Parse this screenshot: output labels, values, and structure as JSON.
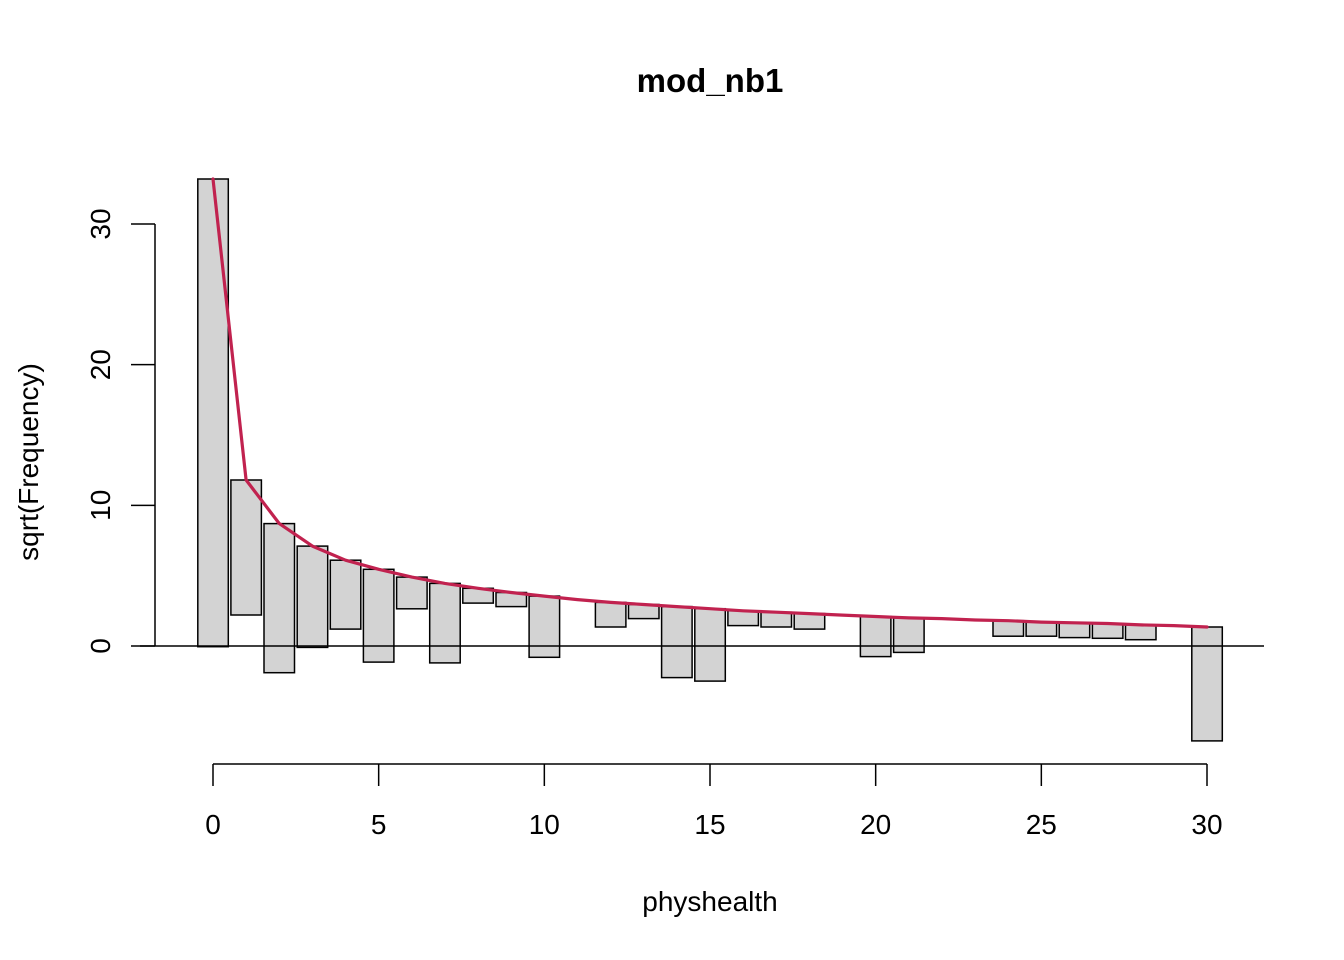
{
  "chart_data": {
    "type": "bar",
    "subtype": "hanging-rootogram",
    "title": "mod_nb1",
    "xlabel": "physhealth",
    "ylabel": "sqrt(Frequency)",
    "xlim": [
      -1,
      31.5
    ],
    "ylim": [
      -8.2,
      33.5
    ],
    "x_ticks": [
      0,
      5,
      10,
      15,
      20,
      25,
      30
    ],
    "y_ticks": [
      0,
      10,
      20,
      30
    ],
    "grid": false,
    "reference_line_y": 0,
    "colors": {
      "bar_fill": "#d3d3d3",
      "bar_stroke": "#000000",
      "fit_line": "#c1224f"
    },
    "bars": [
      {
        "x": 0,
        "top": 33.2,
        "bottom": -0.05
      },
      {
        "x": 1,
        "top": 11.8,
        "bottom": 2.2
      },
      {
        "x": 2,
        "top": 8.7,
        "bottom": -1.9
      },
      {
        "x": 3,
        "top": 7.1,
        "bottom": -0.1
      },
      {
        "x": 4,
        "top": 6.1,
        "bottom": 1.2
      },
      {
        "x": 5,
        "top": 5.45,
        "bottom": -1.15
      },
      {
        "x": 6,
        "top": 4.9,
        "bottom": 2.65
      },
      {
        "x": 7,
        "top": 4.45,
        "bottom": -1.2
      },
      {
        "x": 8,
        "top": 4.1,
        "bottom": 3.05
      },
      {
        "x": 9,
        "top": 3.8,
        "bottom": 2.8
      },
      {
        "x": 10,
        "top": 3.55,
        "bottom": -0.8
      },
      {
        "x": 11,
        "top": 3.3,
        "bottom": 3.3
      },
      {
        "x": 12,
        "top": 3.1,
        "bottom": 1.35
      },
      {
        "x": 13,
        "top": 2.95,
        "bottom": 1.95
      },
      {
        "x": 14,
        "top": 2.8,
        "bottom": -2.25
      },
      {
        "x": 15,
        "top": 2.65,
        "bottom": -2.5
      },
      {
        "x": 16,
        "top": 2.5,
        "bottom": 1.45
      },
      {
        "x": 17,
        "top": 2.4,
        "bottom": 1.35
      },
      {
        "x": 18,
        "top": 2.3,
        "bottom": 1.2
      },
      {
        "x": 19,
        "top": 2.2,
        "bottom": 2.2
      },
      {
        "x": 20,
        "top": 2.1,
        "bottom": -0.75
      },
      {
        "x": 21,
        "top": 2.0,
        "bottom": -0.45
      },
      {
        "x": 22,
        "top": 1.95,
        "bottom": 1.95
      },
      {
        "x": 23,
        "top": 1.85,
        "bottom": 1.85
      },
      {
        "x": 24,
        "top": 1.8,
        "bottom": 0.7
      },
      {
        "x": 25,
        "top": 1.7,
        "bottom": 0.7
      },
      {
        "x": 26,
        "top": 1.65,
        "bottom": 0.6
      },
      {
        "x": 27,
        "top": 1.6,
        "bottom": 0.55
      },
      {
        "x": 28,
        "top": 1.5,
        "bottom": 0.45
      },
      {
        "x": 29,
        "top": 1.45,
        "bottom": 1.45
      },
      {
        "x": 30,
        "top": 1.35,
        "bottom": -6.75
      }
    ]
  }
}
